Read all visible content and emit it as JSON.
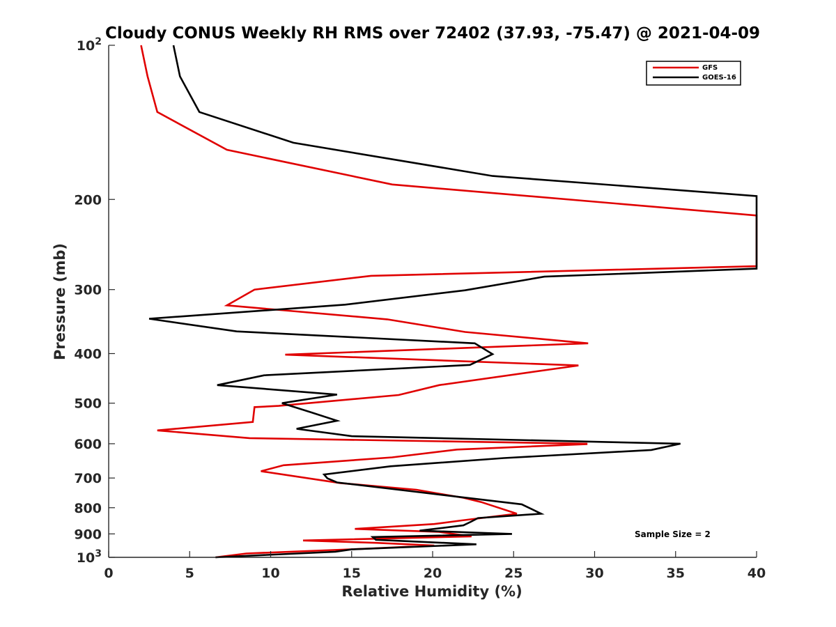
{
  "chart_data": {
    "type": "line",
    "title": "Cloudy CONUS Weekly RH RMS over 72402 (37.93, -75.47) @ 2021-04-09",
    "xlabel": "Relative Humidity (%)",
    "ylabel": "Pressure (mb)",
    "xlim": [
      0,
      40
    ],
    "ylim": [
      100,
      1000
    ],
    "y_scale": "log",
    "y_reversed": true,
    "grid": false,
    "legend_position": "top-right",
    "x_ticks": [
      0,
      5,
      10,
      15,
      20,
      25,
      30,
      35,
      40
    ],
    "x_tick_labels": [
      "0",
      "5",
      "10",
      "15",
      "20",
      "25",
      "30",
      "35",
      "40"
    ],
    "y_ticks": [
      100,
      200,
      300,
      400,
      500,
      600,
      700,
      800,
      900,
      1000
    ],
    "y_tick_labels": [
      {
        "base": "10",
        "exp": "2"
      },
      {
        "base": "200",
        "exp": ""
      },
      {
        "base": "300",
        "exp": ""
      },
      {
        "base": "400",
        "exp": ""
      },
      {
        "base": "500",
        "exp": ""
      },
      {
        "base": "600",
        "exp": ""
      },
      {
        "base": "700",
        "exp": ""
      },
      {
        "base": "800",
        "exp": ""
      },
      {
        "base": "900",
        "exp": ""
      },
      {
        "base": "10",
        "exp": "3"
      }
    ],
    "annotation": "Sample Size = 2",
    "series": [
      {
        "name": "GFS",
        "color": "#e00000",
        "points": [
          [
            2.0,
            100
          ],
          [
            2.4,
            115
          ],
          [
            3.0,
            135
          ],
          [
            7.3,
            160
          ],
          [
            17.5,
            187
          ],
          [
            40,
            215
          ],
          [
            40,
            270
          ],
          [
            16.2,
            282
          ],
          [
            9.0,
            300
          ],
          [
            7.3,
            322
          ],
          [
            17.2,
            343
          ],
          [
            22.0,
            363
          ],
          [
            29.6,
            382
          ],
          [
            10.9,
            402
          ],
          [
            29.0,
            422
          ],
          [
            20.4,
            461
          ],
          [
            17.9,
            482
          ],
          [
            10.5,
            506
          ],
          [
            9.0,
            509
          ],
          [
            8.9,
            544
          ],
          [
            3.0,
            565
          ],
          [
            8.7,
            585
          ],
          [
            29.5,
            600
          ],
          [
            29.5,
            601
          ],
          [
            21.5,
            616
          ],
          [
            17.5,
            638
          ],
          [
            10.8,
            661
          ],
          [
            9.4,
            679
          ],
          [
            14.3,
            716
          ],
          [
            19.0,
            738
          ],
          [
            20.4,
            751
          ],
          [
            21.9,
            765
          ],
          [
            23.0,
            780
          ],
          [
            25.2,
            822
          ],
          [
            21.8,
            847
          ],
          [
            20.1,
            861
          ],
          [
            15.2,
            880
          ],
          [
            20.4,
            892
          ],
          [
            22.4,
            910
          ],
          [
            12.0,
            927
          ],
          [
            16.5,
            937
          ],
          [
            20.1,
            948
          ],
          [
            16.2,
            961
          ],
          [
            8.5,
            983
          ],
          [
            6.6,
            1000
          ]
        ]
      },
      {
        "name": "GOES-16",
        "color": "#000000",
        "points": [
          [
            4.0,
            100
          ],
          [
            4.4,
            115
          ],
          [
            5.6,
            135
          ],
          [
            11.4,
            155
          ],
          [
            23.7,
            180
          ],
          [
            40,
            197
          ],
          [
            40,
            273
          ],
          [
            26.9,
            283
          ],
          [
            22.0,
            301
          ],
          [
            14.6,
            321
          ],
          [
            2.5,
            342
          ],
          [
            7.9,
            362
          ],
          [
            22.6,
            382
          ],
          [
            23.7,
            401
          ],
          [
            22.3,
            421
          ],
          [
            9.6,
            441
          ],
          [
            6.7,
            461
          ],
          [
            14.1,
            481
          ],
          [
            10.7,
            500
          ],
          [
            12.5,
            521
          ],
          [
            14.1,
            541
          ],
          [
            11.6,
            561
          ],
          [
            15.0,
            580
          ],
          [
            35.3,
            600
          ],
          [
            33.5,
            617
          ],
          [
            24.4,
            640
          ],
          [
            17.4,
            664
          ],
          [
            13.3,
            689
          ],
          [
            13.5,
            701
          ],
          [
            14.1,
            714
          ],
          [
            19.0,
            745
          ],
          [
            25.5,
            788
          ],
          [
            26.7,
            822
          ],
          [
            22.8,
            838
          ],
          [
            22.4,
            851
          ],
          [
            21.9,
            866
          ],
          [
            19.2,
            887
          ],
          [
            24.9,
            900
          ],
          [
            16.3,
            913
          ],
          [
            16.5,
            924
          ],
          [
            22.7,
            943
          ],
          [
            15.0,
            965
          ],
          [
            14.0,
            975
          ],
          [
            6.6,
            1000
          ]
        ]
      }
    ]
  }
}
